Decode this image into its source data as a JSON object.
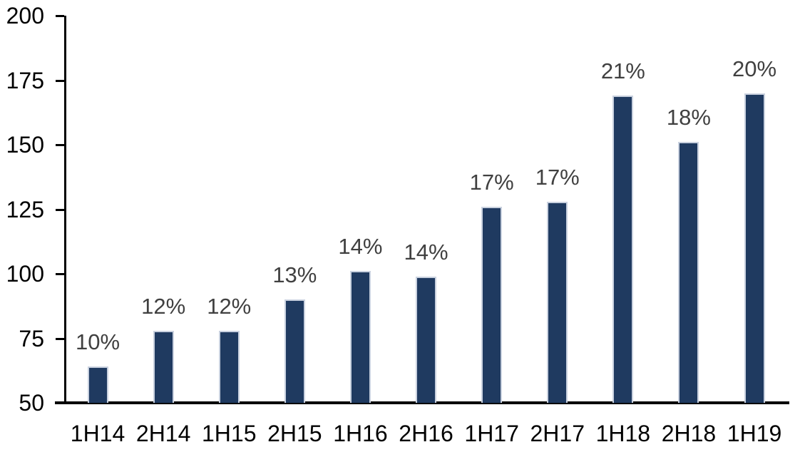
{
  "chart_data": {
    "type": "bar",
    "categories": [
      "1H14",
      "2H14",
      "1H15",
      "2H15",
      "1H16",
      "2H16",
      "1H17",
      "2H17",
      "1H18",
      "2H18",
      "1H19"
    ],
    "values": [
      64,
      78,
      78,
      90,
      101,
      99,
      126,
      128,
      169,
      151,
      170
    ],
    "bar_labels": [
      "10%",
      "12%",
      "12%",
      "13%",
      "14%",
      "14%",
      "17%",
      "17%",
      "21%",
      "18%",
      "20%"
    ],
    "title": "",
    "xlabel": "",
    "ylabel": "",
    "ylim": [
      50,
      200
    ],
    "yticks": [
      50,
      75,
      100,
      125,
      150,
      175,
      200
    ],
    "grid": false,
    "legend": null,
    "colors": {
      "bar_fill": "#1f3a60",
      "bar_border": "#c9d1df",
      "data_label": "#404040",
      "axis_text": "#000000",
      "axis_line": "#000000",
      "background": "#ffffff"
    }
  }
}
